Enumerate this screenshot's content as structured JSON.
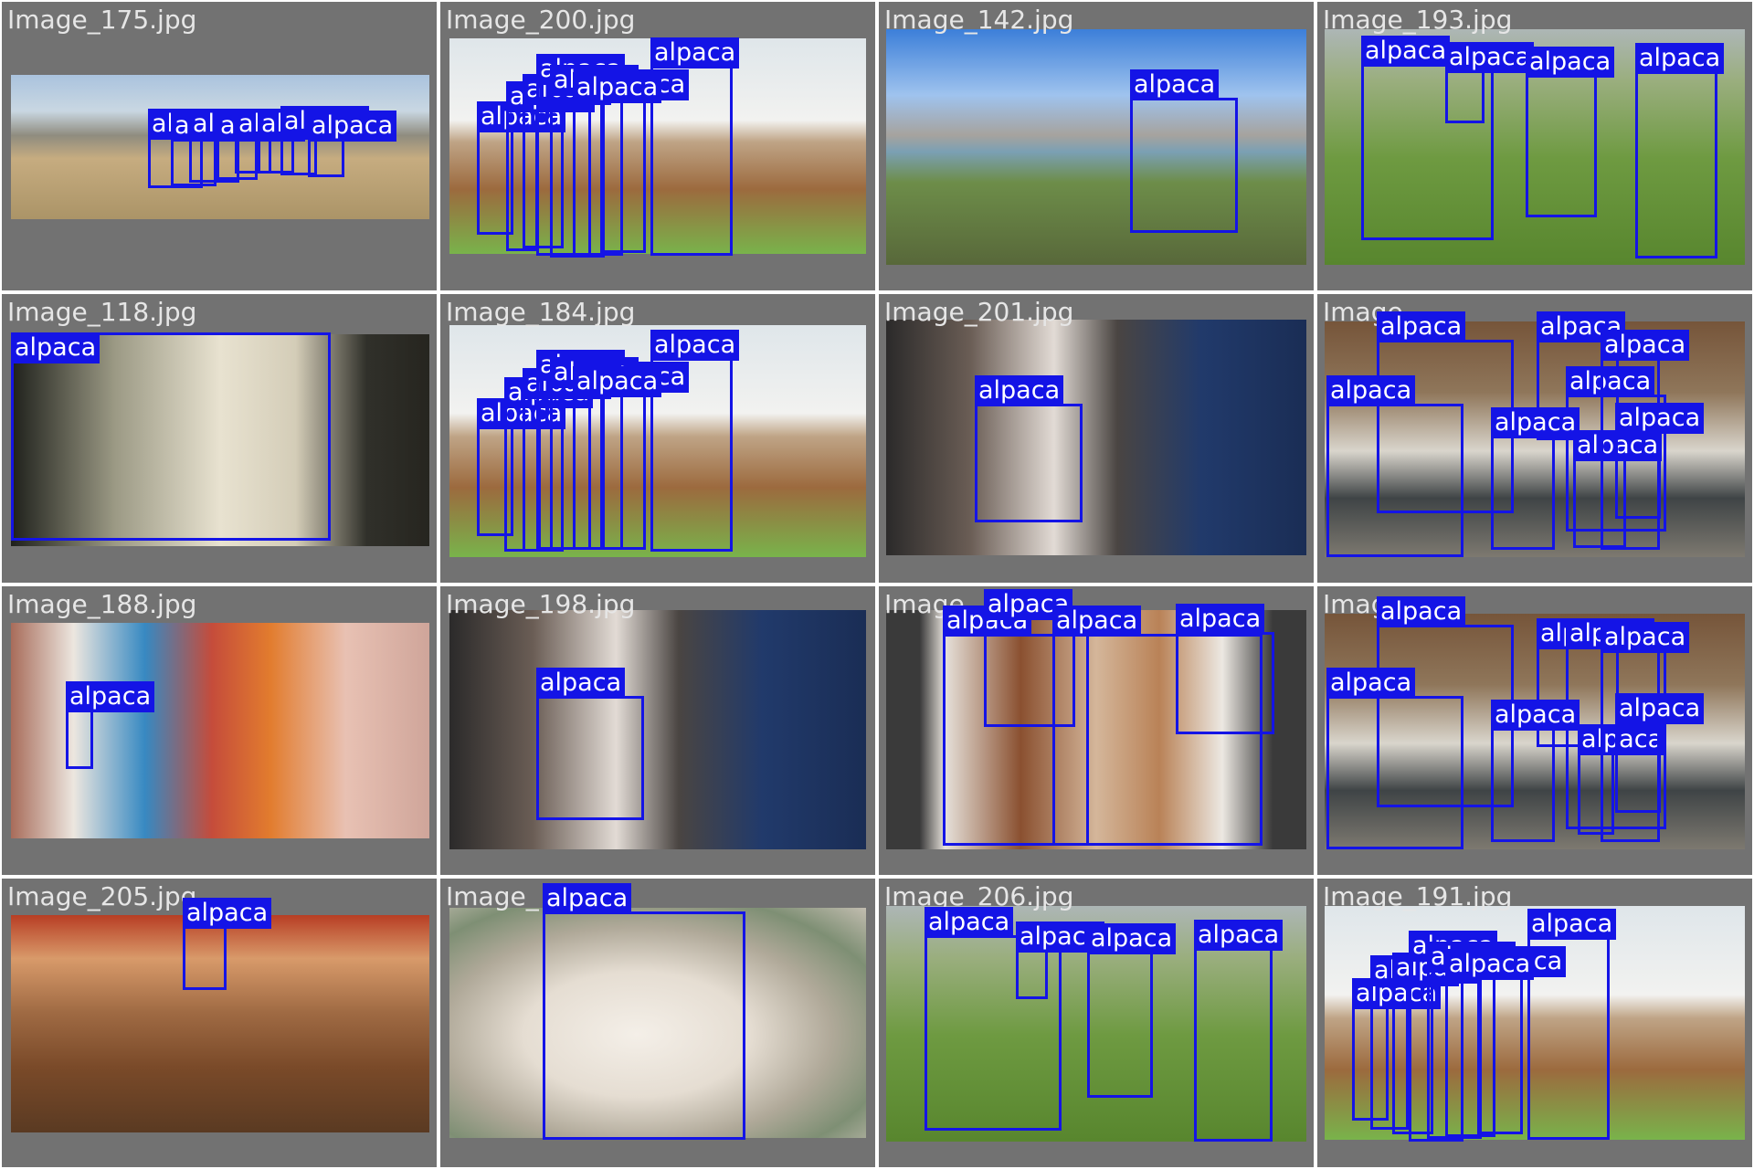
{
  "detection_label": "alpaca",
  "box_color": "#1414e6",
  "cells": [
    {
      "title": "Image_175.jpg",
      "count": 8
    },
    {
      "title": "Image_200.jpg",
      "count": 8
    },
    {
      "title": "Image_142.jpg",
      "count": 1
    },
    {
      "title": "Image_193.jpg",
      "count": 4
    },
    {
      "title": "Image_118.jpg",
      "count": 1
    },
    {
      "title": "Image_184.jpg",
      "count": 8
    },
    {
      "title": "Image_201.jpg",
      "count": 1
    },
    {
      "title": "Image_",
      "count": 8
    },
    {
      "title": "Image_188.jpg",
      "count": 1
    },
    {
      "title": "Image_198.jpg",
      "count": 1
    },
    {
      "title": "Image_",
      "count": 4
    },
    {
      "title": "Image_",
      "count": 8
    },
    {
      "title": "Image_205.jpg",
      "count": 1
    },
    {
      "title": "Image_",
      "count": 1
    },
    {
      "title": "Image_206.jpg",
      "count": 4
    },
    {
      "title": "Image_191.jpg",
      "count": 8
    }
  ]
}
